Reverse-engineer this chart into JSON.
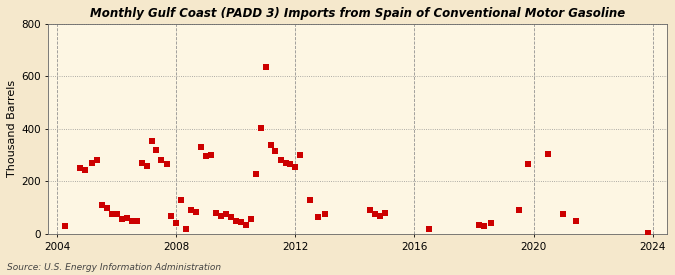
{
  "title": "Monthly Gulf Coast (PADD 3) Imports from Spain of Conventional Motor Gasoline",
  "ylabel": "Thousand Barrels",
  "source": "Source: U.S. Energy Information Administration",
  "background_color": "#f5e8cc",
  "plot_bg_color": "#fdf6e3",
  "marker_color": "#cc0000",
  "xlim": [
    2003.7,
    2024.5
  ],
  "ylim": [
    0,
    800
  ],
  "yticks": [
    0,
    200,
    400,
    600,
    800
  ],
  "xticks": [
    2004,
    2008,
    2012,
    2016,
    2020,
    2024
  ],
  "data_points": [
    [
      2004.25,
      30
    ],
    [
      2004.75,
      250
    ],
    [
      2004.92,
      245
    ],
    [
      2005.17,
      270
    ],
    [
      2005.33,
      280
    ],
    [
      2005.5,
      110
    ],
    [
      2005.67,
      100
    ],
    [
      2005.83,
      75
    ],
    [
      2006.0,
      75
    ],
    [
      2006.17,
      55
    ],
    [
      2006.33,
      60
    ],
    [
      2006.5,
      50
    ],
    [
      2006.67,
      50
    ],
    [
      2006.83,
      270
    ],
    [
      2007.0,
      260
    ],
    [
      2007.17,
      355
    ],
    [
      2007.33,
      320
    ],
    [
      2007.5,
      280
    ],
    [
      2007.67,
      265
    ],
    [
      2007.83,
      70
    ],
    [
      2008.0,
      40
    ],
    [
      2008.17,
      130
    ],
    [
      2008.33,
      20
    ],
    [
      2008.5,
      90
    ],
    [
      2008.67,
      85
    ],
    [
      2008.83,
      330
    ],
    [
      2009.0,
      295
    ],
    [
      2009.17,
      300
    ],
    [
      2009.33,
      80
    ],
    [
      2009.5,
      70
    ],
    [
      2009.67,
      75
    ],
    [
      2009.83,
      65
    ],
    [
      2010.0,
      50
    ],
    [
      2010.17,
      45
    ],
    [
      2010.33,
      35
    ],
    [
      2010.5,
      55
    ],
    [
      2010.67,
      230
    ],
    [
      2010.83,
      405
    ],
    [
      2011.0,
      635
    ],
    [
      2011.17,
      340
    ],
    [
      2011.33,
      315
    ],
    [
      2011.5,
      280
    ],
    [
      2011.67,
      270
    ],
    [
      2011.83,
      265
    ],
    [
      2012.0,
      255
    ],
    [
      2012.17,
      300
    ],
    [
      2012.5,
      130
    ],
    [
      2012.75,
      65
    ],
    [
      2013.0,
      75
    ],
    [
      2014.5,
      90
    ],
    [
      2014.67,
      75
    ],
    [
      2014.83,
      70
    ],
    [
      2015.0,
      80
    ],
    [
      2016.5,
      20
    ],
    [
      2018.17,
      35
    ],
    [
      2018.33,
      30
    ],
    [
      2018.58,
      40
    ],
    [
      2019.5,
      90
    ],
    [
      2019.83,
      265
    ],
    [
      2020.5,
      305
    ],
    [
      2021.0,
      75
    ],
    [
      2021.42,
      50
    ],
    [
      2023.83,
      5
    ]
  ]
}
